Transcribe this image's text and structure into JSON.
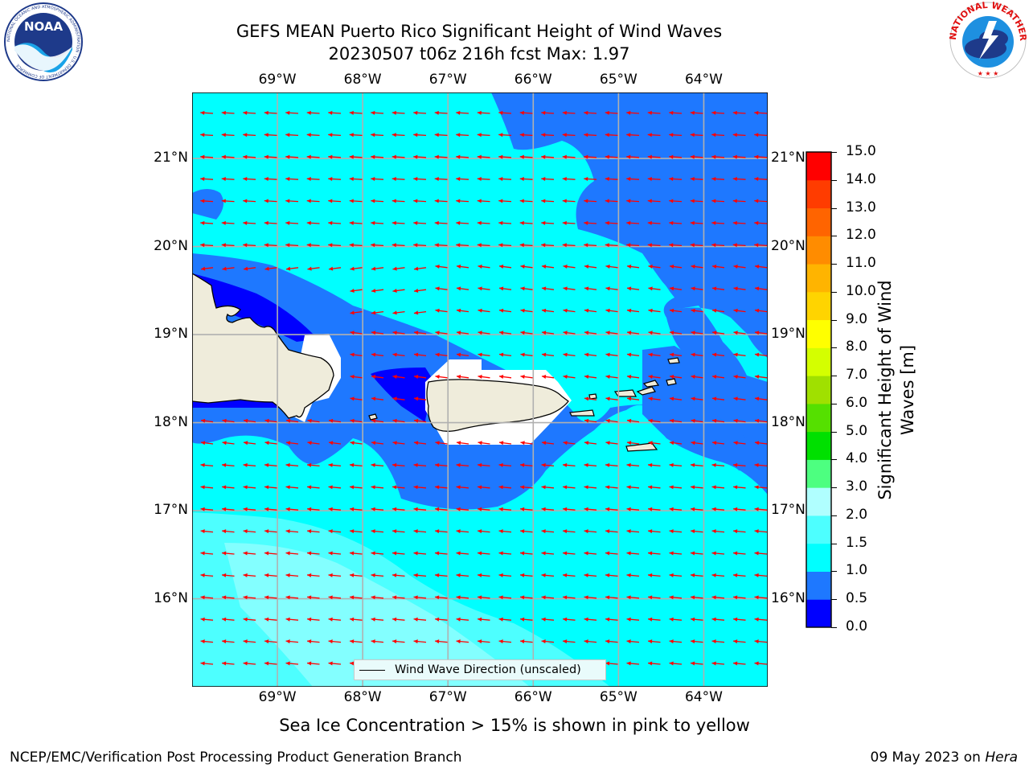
{
  "title_line1": "GEFS MEAN Puerto Rico Significant Height of Wind Waves",
  "title_line2": "20230507 t06z 216h fcst   Max: 1.97",
  "logos": {
    "left": {
      "name": "noaa-logo",
      "text": "NOAA",
      "ring_text": "NATIONAL OCEANIC AND ATMOSPHERIC ADMINISTRATION · U.S. DEPARTMENT OF COMMERCE"
    },
    "right": {
      "name": "nws-logo",
      "ring_text": "NATIONAL WEATHER SERVICE"
    }
  },
  "map": {
    "lon_range": [
      -70,
      -63.25
    ],
    "lat_range": [
      15,
      21.75
    ],
    "lon_ticks": [
      {
        "value": -69,
        "label": "69°W"
      },
      {
        "value": -68,
        "label": "68°W"
      },
      {
        "value": -67,
        "label": "67°W"
      },
      {
        "value": -66,
        "label": "66°W"
      },
      {
        "value": -65,
        "label": "65°W"
      },
      {
        "value": -64,
        "label": "64°W"
      }
    ],
    "lat_ticks": [
      {
        "value": 21,
        "label": "21°N"
      },
      {
        "value": 20,
        "label": "20°N"
      },
      {
        "value": 19,
        "label": "19°N"
      },
      {
        "value": 18,
        "label": "18°N"
      },
      {
        "value": 17,
        "label": "17°N"
      },
      {
        "value": 16,
        "label": "16°N"
      }
    ],
    "gridlines": true,
    "arrow_color": "#ff0000",
    "land_color": "#efecdb",
    "legend_label": "Wind Wave Direction (unscaled)",
    "max_value": 1.97
  },
  "colorbar": {
    "label": "Significant Height of Wind Waves [m]",
    "label_line1": "Significant Height of Wind",
    "label_line2": "Waves [m]",
    "ticks": [
      "0.0",
      "0.5",
      "1.0",
      "1.5",
      "2.0",
      "3.0",
      "4.0",
      "5.0",
      "6.0",
      "7.0",
      "8.0",
      "9.0",
      "10.0",
      "11.0",
      "12.0",
      "13.0",
      "14.0",
      "15.0"
    ],
    "colors": [
      "#0000ff",
      "#1e78ff",
      "#00ffff",
      "#4dffff",
      "#b0ffff",
      "#4dff80",
      "#00e000",
      "#55e000",
      "#a0e000",
      "#d4ff00",
      "#ffff00",
      "#ffd400",
      "#ffb400",
      "#ff8c00",
      "#ff6400",
      "#ff3c00",
      "#ff0000"
    ]
  },
  "bottom_caption": "Sea Ice Concentration > 15% is shown in pink to yellow",
  "footer_left": "NCEP/EMC/Verification Post Processing Product Generation Branch",
  "footer_date": "09 May 2023 on ",
  "footer_host": "Hera"
}
